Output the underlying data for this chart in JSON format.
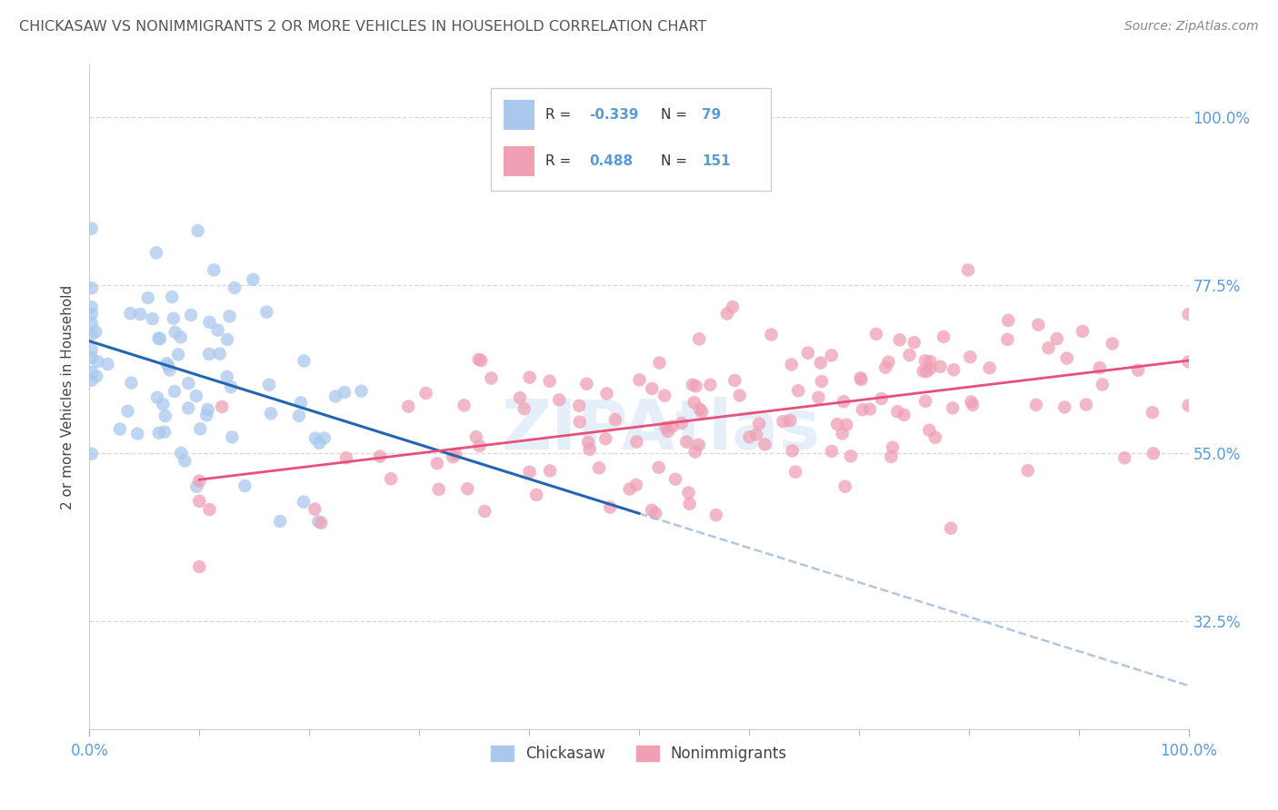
{
  "title": "CHICKASAW VS NONIMMIGRANTS 2 OR MORE VEHICLES IN HOUSEHOLD CORRELATION CHART",
  "source": "Source: ZipAtlas.com",
  "ylabel": "2 or more Vehicles in Household",
  "xlim": [
    0.0,
    100.0
  ],
  "ylim": [
    18.0,
    107.0
  ],
  "ytick_vals": [
    32.5,
    55.0,
    77.5,
    100.0
  ],
  "ytick_labels": [
    "32.5%",
    "55.0%",
    "77.5%",
    "100.0%"
  ],
  "xtick_edge_labels": [
    "0.0%",
    "100.0%"
  ],
  "chickasaw_color": "#aac8ed",
  "nonimmigrants_color": "#f0a0b5",
  "chickasaw_line_color": "#2266b0",
  "nonimmigrants_line_color": "#e8507a",
  "dashed_line_color": "#a0b8d8",
  "background_color": "#ffffff",
  "grid_color": "#d8d8d8",
  "title_color": "#555555",
  "axis_label_color": "#5b9bd5",
  "R_chickasaw": -0.339,
  "N_chickasaw": 79,
  "R_nonimmigrants": 0.488,
  "N_nonimmigrants": 151,
  "watermark_color": "#d5e5f5",
  "legend_text_color": "#333333",
  "source_color": "#888888"
}
